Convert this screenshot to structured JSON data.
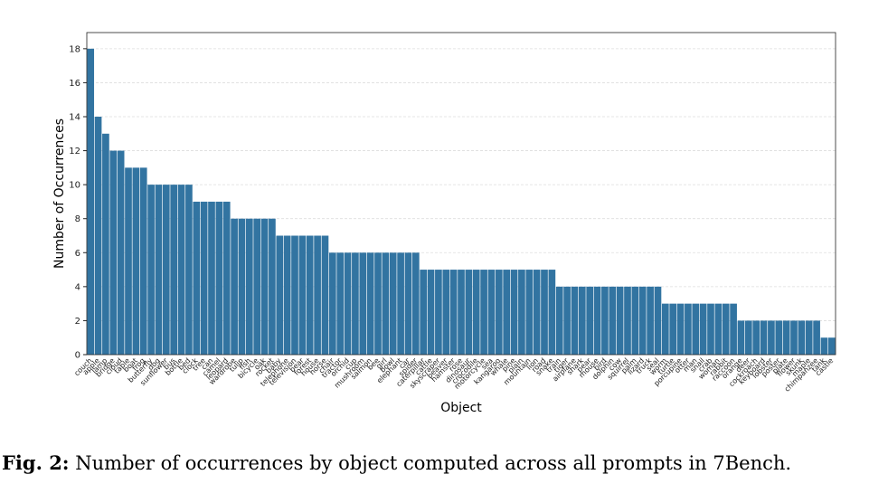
{
  "chart_data": {
    "type": "bar",
    "x_label": "Object",
    "y_label": "Number of Occurrences",
    "color": "#3274a1",
    "grid": true,
    "categories": [
      "couch",
      "apple",
      "lamp",
      "bridge",
      "cloud",
      "table",
      "boat",
      "frog",
      "butterfly",
      "dog",
      "sunflower",
      "bus",
      "bottle",
      "bed",
      "clock",
      "tree",
      "can",
      "camel",
      "leopard",
      "wardrobe",
      "tulip",
      "fish",
      "bicycle",
      "oak",
      "rocket",
      "baby",
      "telephone",
      "television",
      "bear",
      "forest",
      "house",
      "horse",
      "chair",
      "tractor",
      "orchid",
      "cup",
      "mushroom",
      "salmon",
      "bee",
      "girl",
      "bowl",
      "elephant",
      "car",
      "spider",
      "caterpillar",
      "cattle",
      "skyscraper",
      "beaver",
      "hamster",
      "rose",
      "dinosaur",
      "crocodile",
      "motorcycle",
      "sea",
      "kangaroo",
      "whale",
      "pine",
      "plain",
      "mountain",
      "lion",
      "road",
      "snake",
      "train",
      "tiger",
      "airplane",
      "shark",
      "pear",
      "mouse",
      "bird",
      "dolphin",
      "cow",
      "squirrel",
      "palm",
      "lizard",
      "truck",
      "seal",
      "worm",
      "turtle",
      "porcupine",
      "otter",
      "man",
      "snail",
      "crab",
      "woman",
      "rabbit",
      "raccoon",
      "orange",
      "deer",
      "cockroach",
      "keyboard",
      "lobster",
      "poster",
      "plate",
      "flower",
      "skunk",
      "maple",
      "chimpanzee",
      "tank",
      "castle"
    ],
    "values": [
      18,
      14,
      13,
      12,
      12,
      11,
      11,
      11,
      10,
      10,
      10,
      10,
      10,
      10,
      9,
      9,
      9,
      9,
      9,
      8,
      8,
      8,
      8,
      8,
      8,
      7,
      7,
      7,
      7,
      7,
      7,
      7,
      6,
      6,
      6,
      6,
      6,
      6,
      6,
      6,
      6,
      6,
      6,
      6,
      5,
      5,
      5,
      5,
      5,
      5,
      5,
      5,
      5,
      5,
      5,
      5,
      5,
      5,
      5,
      5,
      5,
      5,
      4,
      4,
      4,
      4,
      4,
      4,
      4,
      4,
      4,
      4,
      4,
      4,
      4,
      4,
      3,
      3,
      3,
      3,
      3,
      3,
      3,
      3,
      3,
      3,
      2,
      2,
      2,
      2,
      2,
      2,
      2,
      2,
      2,
      2,
      2,
      1,
      1
    ],
    "ylim": [
      0,
      18.95
    ],
    "yticks": [
      0,
      2,
      4,
      6,
      8,
      10,
      12,
      14,
      16,
      18
    ]
  },
  "caption": {
    "label": "Fig. 2:",
    "text": "Number of occurrences by object computed across all prompts in 7Bench."
  }
}
